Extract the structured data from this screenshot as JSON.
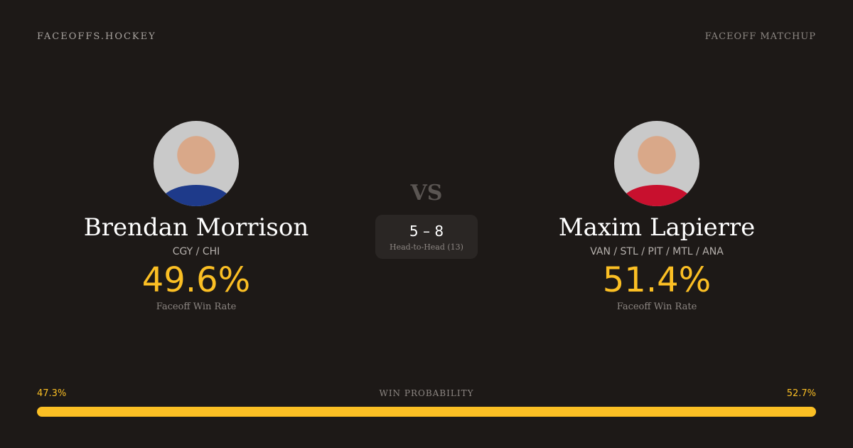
{
  "header": {
    "brand": "FACEOFFS.HOCKEY",
    "tag": "FACEOFF MATCHUP"
  },
  "players": [
    {
      "name": "Brendan Morrison",
      "teams": "CGY / CHI",
      "win_rate": "49.6%",
      "win_rate_label": "Faceoff Win Rate",
      "jersey_color": "#1e3a8a"
    },
    {
      "name": "Maxim Lapierre",
      "teams": "VAN / STL / PIT / MTL / ANA",
      "win_rate": "51.4%",
      "win_rate_label": "Faceoff Win Rate",
      "jersey_color": "#c8102e"
    }
  ],
  "vs": "VS",
  "head_to_head": {
    "score": "5 – 8",
    "label": "Head-to-Head (13)"
  },
  "win_probability": {
    "label": "WIN PROBABILITY",
    "left": "47.3%",
    "right": "52.7%",
    "left_value": 47.3,
    "right_value": 52.7,
    "color": "#fbbf24"
  }
}
